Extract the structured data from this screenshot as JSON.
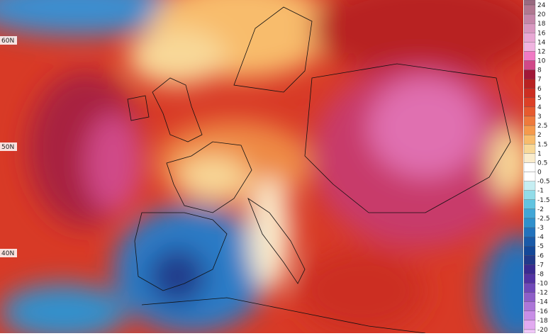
{
  "map": {
    "lat_labels": [
      "60N",
      "50N",
      "40N"
    ]
  },
  "colorbar": {
    "labels": [
      24,
      20,
      18,
      16,
      14,
      12,
      10,
      8,
      7,
      6,
      5,
      4,
      3,
      2.5,
      2,
      1.5,
      1,
      0.5,
      0,
      -0.5,
      -1,
      -1.5,
      -2,
      -2.5,
      -3,
      -4,
      -5,
      -6,
      -7,
      -8,
      -10,
      -12,
      -14,
      -16,
      -18,
      -20
    ],
    "colors": [
      "#9a6a80",
      "#b07890",
      "#c486a8",
      "#d898c0",
      "#e8a8d4",
      "#f0b4e0",
      "#f07ac4",
      "#d04888",
      "#a01838",
      "#b82222",
      "#cc2e22",
      "#dc4026",
      "#e65a2e",
      "#ee7a3c",
      "#f59a4c",
      "#f8bc6c",
      "#f8d898",
      "#faeccc",
      "#ffffff",
      "#ffffff",
      "#c6eef2",
      "#92dce8",
      "#62c4e0",
      "#42a6d6",
      "#3090cc",
      "#2272bc",
      "#1a5aa8",
      "#144898",
      "#223a8a",
      "#3a2a90",
      "#5232a2",
      "#7048b8",
      "#8e5ec8",
      "#ac76d8",
      "#c88ee6",
      "#e2aaf0",
      "#f0c8f8"
    ]
  }
}
